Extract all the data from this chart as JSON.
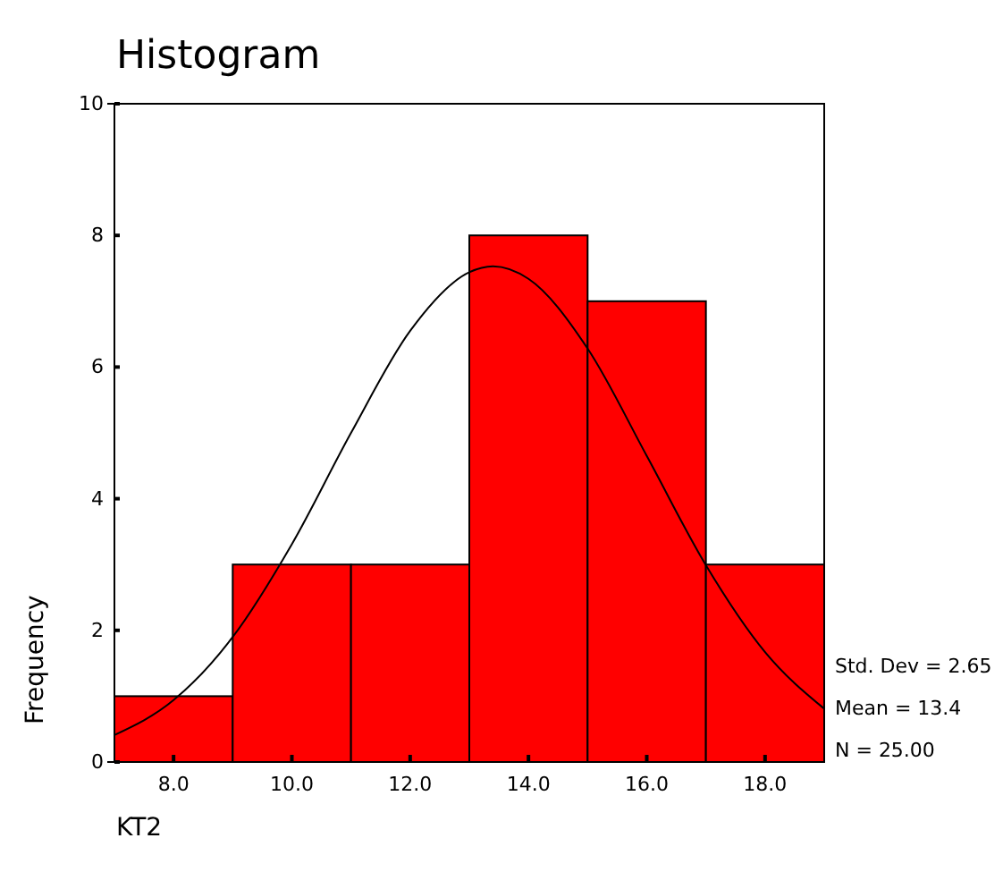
{
  "chart_data": {
    "type": "histogram",
    "title": "Histogram",
    "xlabel": "KT2",
    "ylabel": "Frequency",
    "bins": [
      7,
      9,
      11,
      13,
      15,
      17,
      19
    ],
    "values": [
      1,
      3,
      3,
      8,
      7,
      3
    ],
    "color": "#ff0000",
    "series": [
      {
        "type": "line",
        "color": "#000000",
        "x": [
          7,
          8,
          9,
          10,
          11,
          12,
          13,
          13.4,
          14,
          15,
          16,
          17,
          18,
          19
        ],
        "values": [
          0.41,
          0.94,
          1.9,
          3.31,
          5.0,
          6.55,
          7.44,
          7.53,
          7.34,
          6.28,
          4.65,
          2.99,
          1.67,
          0.81
        ]
      }
    ],
    "xlim": [
      7,
      19
    ],
    "xticks": [
      {
        "value": 8,
        "label": "8.0"
      },
      {
        "value": 10,
        "label": "10.0"
      },
      {
        "value": 12,
        "label": "12.0"
      },
      {
        "value": 14,
        "label": "14.0"
      },
      {
        "value": 16,
        "label": "16.0"
      },
      {
        "value": 18,
        "label": "18.0"
      }
    ],
    "ylim": [
      0,
      10
    ],
    "yticks": [
      0,
      2,
      4,
      6,
      8,
      10
    ],
    "grid": false,
    "annotations": [
      "Std. Dev = 2.65",
      "Mean = 13.4",
      "N = 25.00"
    ]
  }
}
